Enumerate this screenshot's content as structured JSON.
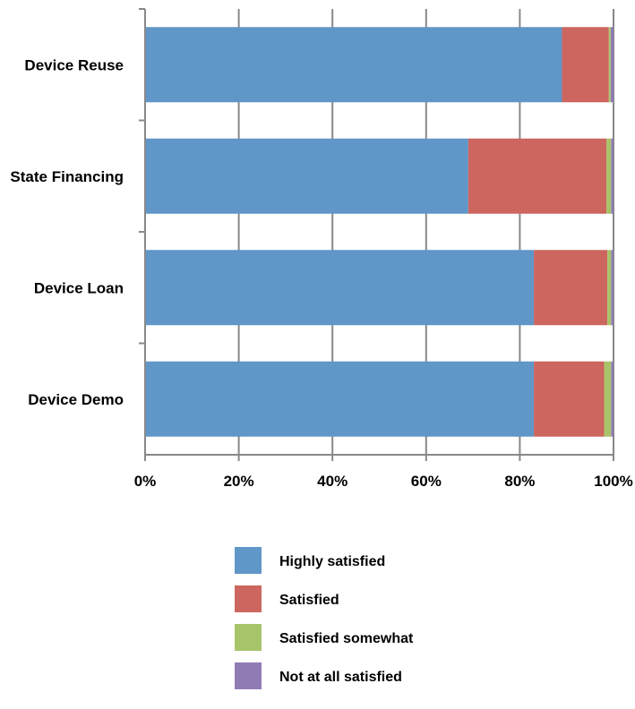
{
  "chart_data": {
    "type": "bar",
    "orientation": "horizontal",
    "stacked": true,
    "percent": true,
    "title": "",
    "xlabel": "",
    "ylabel": "",
    "xlim": [
      0,
      100
    ],
    "x_ticks": [
      "0%",
      "20%",
      "40%",
      "60%",
      "80%",
      "100%"
    ],
    "categories": [
      "Device Reuse",
      "State Financing",
      "Device Loan",
      "Device Demo"
    ],
    "series": [
      {
        "name": "Highly satisfied",
        "color": "#6096c8",
        "values": [
          89,
          69,
          83,
          83
        ]
      },
      {
        "name": "Satisfied",
        "color": "#cc665e",
        "values": [
          10,
          29.5,
          15.7,
          15
        ]
      },
      {
        "name": "Satisfied somewhat",
        "color": "#a8c46a",
        "values": [
          0.4,
          1,
          0.8,
          1.5
        ]
      },
      {
        "name": "Not at all satisfied",
        "color": "#907cb5",
        "values": [
          0.6,
          0.5,
          0.5,
          0.5
        ]
      }
    ],
    "grid": {
      "vertical": true,
      "horizontal": false,
      "color": "#888888"
    },
    "legend": {
      "position": "bottom"
    }
  }
}
